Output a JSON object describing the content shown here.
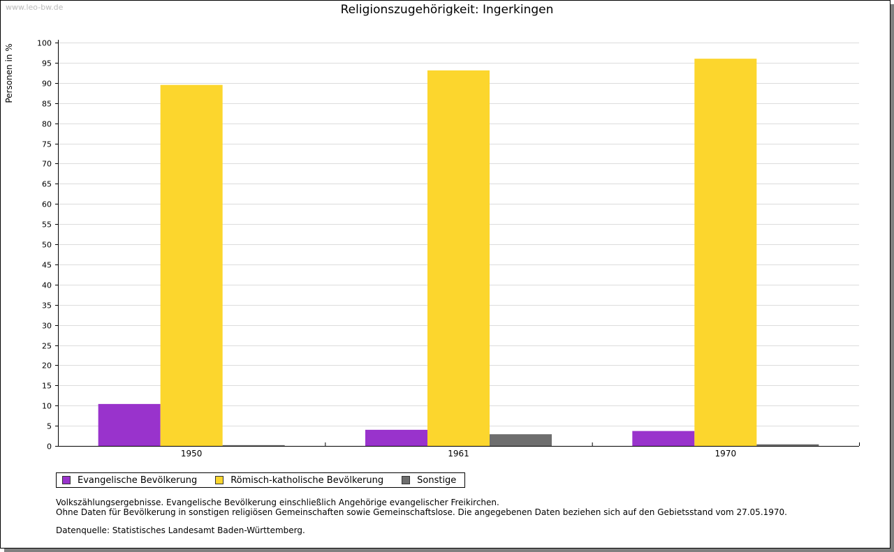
{
  "watermark": "www.leo-bw.de",
  "notes": [
    "Volkszählungsergebnisse. Evangelische Bevölkerung einschließlich Angehörige evangelischer Freikirchen.",
    "Ohne Daten für Bevölkerung in sonstigen religiösen Gemeinschaften sowie Gemeinschaftslose. Die angegebenen Daten beziehen sich auf den Gebietsstand vom 27.05.1970."
  ],
  "source": "Datenquelle: Statistisches Landesamt Baden-Württemberg.",
  "chart_data": {
    "type": "bar",
    "title": "Religionszugehörigkeit: Ingerkingen",
    "xlabel": "",
    "ylabel": "Personen in %",
    "ylim": [
      0,
      100
    ],
    "ytick_step": 5,
    "grid": true,
    "legend_position": "bottom-left",
    "categories": [
      "1950",
      "1961",
      "1970"
    ],
    "series": [
      {
        "name": "Evangelische Bevölkerung",
        "color": "#9933cc",
        "values": [
          10.4,
          4.0,
          3.7
        ]
      },
      {
        "name": "Römisch-katholische Bevölkerung",
        "color": "#fcd62d",
        "values": [
          89.5,
          93.1,
          96.0
        ]
      },
      {
        "name": "Sonstige",
        "color": "#6e6e6e",
        "values": [
          0.2,
          2.9,
          0.4
        ]
      }
    ]
  }
}
